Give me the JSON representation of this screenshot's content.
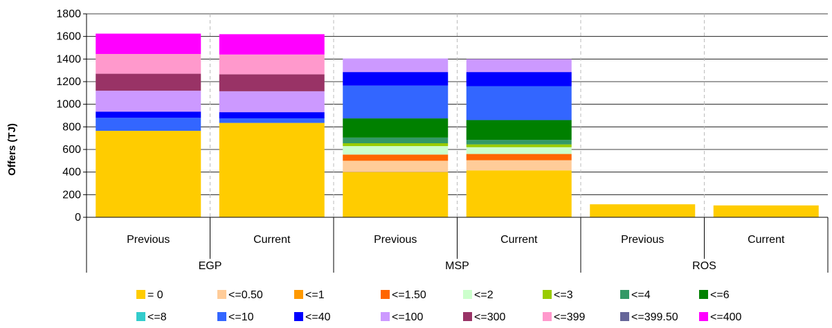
{
  "chart_data": {
    "type": "bar",
    "stacked": true,
    "ylabel": "Offers (TJ)",
    "ylim": [
      0,
      1800
    ],
    "yticks": [
      0,
      200,
      400,
      600,
      800,
      1000,
      1200,
      1400,
      1600,
      1800
    ],
    "grid": "horizontal",
    "legend_position": "bottom",
    "groups": [
      "EGP",
      "MSP",
      "ROS"
    ],
    "categories": [
      "Previous",
      "Current",
      "Previous",
      "Current",
      "Previous",
      "Current"
    ],
    "category_group": [
      0,
      0,
      1,
      1,
      2,
      2
    ],
    "series": [
      {
        "name": "= 0",
        "color": "#FFCC00",
        "values": [
          765,
          835,
          400,
          415,
          115,
          105
        ]
      },
      {
        "name": "<=0.50",
        "color": "#FFCC99",
        "values": [
          0,
          0,
          100,
          90,
          0,
          0
        ]
      },
      {
        "name": "<=1",
        "color": "#FF9900",
        "values": [
          0,
          0,
          0,
          0,
          0,
          0
        ]
      },
      {
        "name": "<=1.50",
        "color": "#FF6600",
        "values": [
          0,
          0,
          55,
          55,
          0,
          0
        ]
      },
      {
        "name": "<=2",
        "color": "#CCFFCC",
        "values": [
          0,
          0,
          75,
          60,
          0,
          0
        ]
      },
      {
        "name": "<=3",
        "color": "#99CC00",
        "values": [
          0,
          0,
          25,
          25,
          0,
          0
        ]
      },
      {
        "name": "<=4",
        "color": "#339966",
        "values": [
          0,
          0,
          50,
          40,
          0,
          0
        ]
      },
      {
        "name": "<=6",
        "color": "#008000",
        "values": [
          0,
          0,
          170,
          175,
          0,
          0
        ]
      },
      {
        "name": "<=8",
        "color": "#33CCCC",
        "values": [
          0,
          0,
          0,
          0,
          0,
          0
        ]
      },
      {
        "name": "<=10",
        "color": "#3366FF",
        "values": [
          115,
          40,
          290,
          300,
          0,
          0
        ]
      },
      {
        "name": "<=40",
        "color": "#0000FF",
        "values": [
          55,
          55,
          120,
          125,
          0,
          0
        ]
      },
      {
        "name": "<=100",
        "color": "#CC99FF",
        "values": [
          185,
          185,
          120,
          115,
          0,
          0
        ]
      },
      {
        "name": "<=300",
        "color": "#993366",
        "values": [
          150,
          150,
          0,
          0,
          0,
          0
        ]
      },
      {
        "name": "<=399",
        "color": "#FF99CC",
        "values": [
          175,
          175,
          0,
          0,
          0,
          0
        ]
      },
      {
        "name": "<=399.50",
        "color": "#666699",
        "values": [
          0,
          0,
          0,
          0,
          0,
          0
        ]
      },
      {
        "name": "<=400",
        "color": "#FF00FF",
        "values": [
          180,
          180,
          0,
          0,
          0,
          0
        ]
      }
    ]
  }
}
